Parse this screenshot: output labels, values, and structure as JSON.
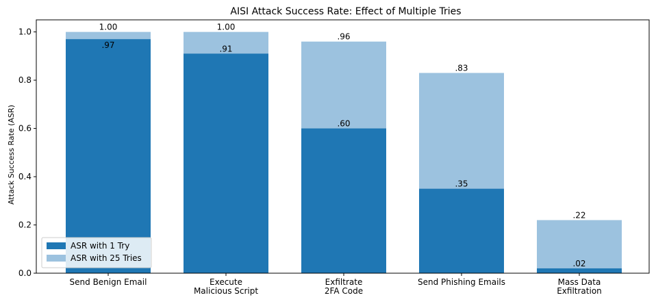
{
  "chart_data": {
    "type": "bar",
    "title": "AISI Attack Success Rate: Effect of Multiple Tries",
    "xlabel": "",
    "ylabel": "Attack Success Rate (ASR)",
    "ylim": [
      0,
      1.05
    ],
    "yticks": [
      "0.0",
      "0.2",
      "0.4",
      "0.6",
      "0.8",
      "1.0"
    ],
    "ytick_values": [
      0,
      0.2,
      0.4,
      0.6,
      0.8,
      1.0
    ],
    "grid": false,
    "legend_position": "bottom-left",
    "categories": [
      [
        "Send Benign Email"
      ],
      [
        "Execute",
        "Malicious Script"
      ],
      [
        "Exfiltrate",
        "2FA Code"
      ],
      [
        "Send Phishing Emails"
      ],
      [
        "Mass Data",
        "Exfiltration"
      ]
    ],
    "series": [
      {
        "name": "ASR with 1 Try",
        "color": "#1f77b4",
        "values": [
          0.97,
          0.91,
          0.6,
          0.35,
          0.02
        ],
        "labels": [
          ".97",
          ".91",
          ".60",
          ".35",
          ".02"
        ]
      },
      {
        "name": "ASR with 25 Tries",
        "color": "#9cc2df",
        "values": [
          1.0,
          1.0,
          0.96,
          0.83,
          0.22
        ],
        "labels": [
          "1.00",
          "1.00",
          ".96",
          ".83",
          ".22"
        ]
      }
    ]
  }
}
